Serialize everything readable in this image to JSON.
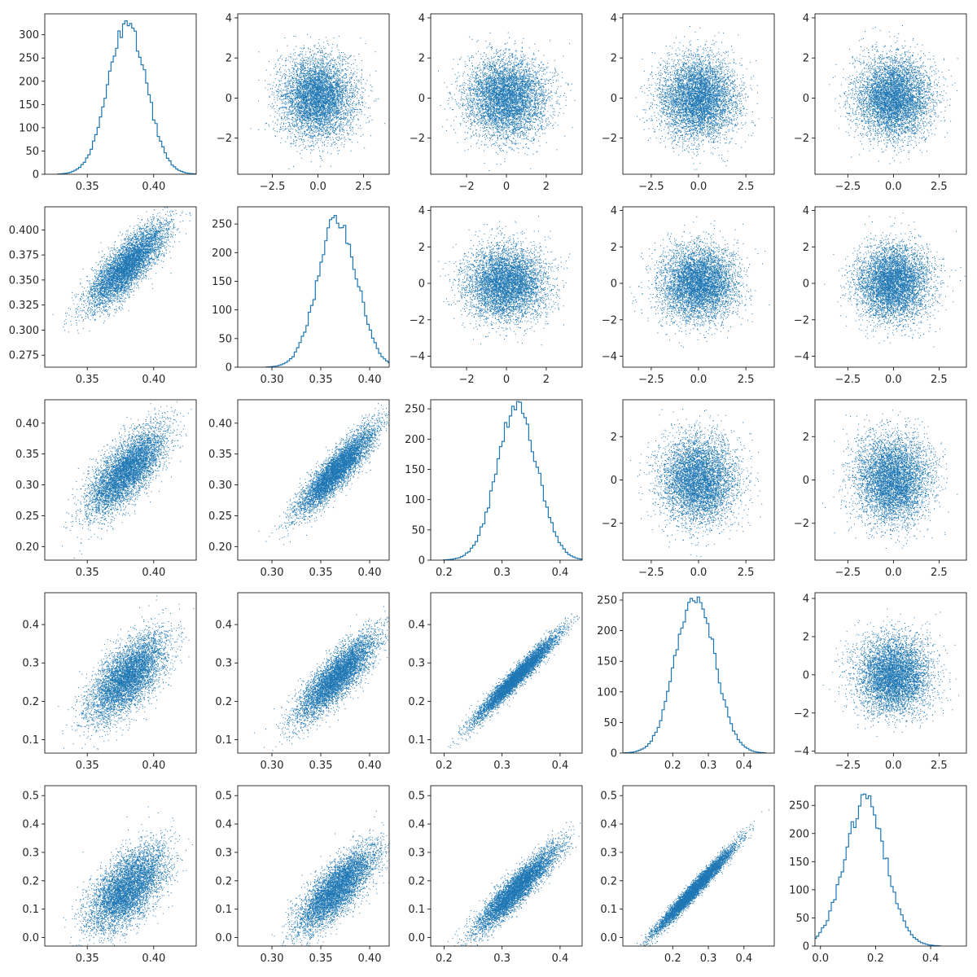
{
  "figure": {
    "background": "#ffffff",
    "accent": "#1f77b4"
  },
  "chart_data": [
    {
      "type": "histogram",
      "row": 0,
      "col": 0,
      "xlim": [
        0.318,
        0.432
      ],
      "ylim": [
        0,
        345
      ],
      "xticks": [
        0.35,
        0.4
      ],
      "xtick_labels": [
        "0.35",
        "0.40"
      ],
      "yticks": [
        0,
        50,
        100,
        150,
        200,
        250,
        300
      ],
      "ytick_labels": [
        "0",
        "50",
        "100",
        "150",
        "200",
        "250",
        "300"
      ],
      "dist": {
        "mean": 0.38,
        "sd": 0.0145,
        "peak": 330
      },
      "bins": 60
    },
    {
      "type": "scatter",
      "row": 0,
      "col": 1,
      "xlim": [
        -4.4,
        3.9
      ],
      "ylim": [
        -3.8,
        4.2
      ],
      "xticks": [
        -2.5,
        0.0,
        2.5
      ],
      "xtick_labels": [
        "−2.5",
        "0.0",
        "2.5"
      ],
      "yticks": [
        -2,
        0,
        2,
        4
      ],
      "ytick_labels": [
        "−2",
        "0",
        "2",
        "4"
      ],
      "points": {
        "n": 5500,
        "x": {
          "mean": 0,
          "sd": 1
        },
        "y": {
          "mean": 0,
          "sd": 1
        },
        "corr": 0
      }
    },
    {
      "type": "scatter",
      "row": 0,
      "col": 2,
      "xlim": [
        -3.8,
        3.8
      ],
      "ylim": [
        -3.8,
        4.2
      ],
      "xticks": [
        -2,
        0,
        2
      ],
      "xtick_labels": [
        "−2",
        "0",
        "2"
      ],
      "yticks": [
        -2,
        0,
        2,
        4
      ],
      "ytick_labels": [
        "−2",
        "0",
        "2",
        "4"
      ],
      "points": {
        "n": 5500,
        "x": {
          "mean": 0,
          "sd": 1
        },
        "y": {
          "mean": 0,
          "sd": 1
        },
        "corr": 0
      }
    },
    {
      "type": "scatter",
      "row": 0,
      "col": 3,
      "xlim": [
        -4.0,
        4.0
      ],
      "ylim": [
        -3.8,
        4.2
      ],
      "xticks": [
        -2.5,
        0.0,
        2.5
      ],
      "xtick_labels": [
        "−2.5",
        "0.0",
        "2.5"
      ],
      "yticks": [
        -2,
        0,
        2,
        4
      ],
      "ytick_labels": [
        "−2",
        "0",
        "2",
        "4"
      ],
      "points": {
        "n": 5500,
        "x": {
          "mean": 0,
          "sd": 1
        },
        "y": {
          "mean": 0,
          "sd": 1
        },
        "corr": 0
      }
    },
    {
      "type": "scatter",
      "row": 0,
      "col": 4,
      "xlim": [
        -4.3,
        4.0
      ],
      "ylim": [
        -3.8,
        4.2
      ],
      "xticks": [
        -2.5,
        0.0,
        2.5
      ],
      "xtick_labels": [
        "−2.5",
        "0.0",
        "2.5"
      ],
      "yticks": [
        -2,
        0,
        2,
        4
      ],
      "ytick_labels": [
        "−2",
        "0",
        "2",
        "4"
      ],
      "points": {
        "n": 5500,
        "x": {
          "mean": 0,
          "sd": 1
        },
        "y": {
          "mean": 0,
          "sd": 1
        },
        "corr": 0
      }
    },
    {
      "type": "scatter",
      "row": 1,
      "col": 0,
      "xlim": [
        0.318,
        0.432
      ],
      "ylim": [
        0.263,
        0.423
      ],
      "xticks": [
        0.35,
        0.4
      ],
      "xtick_labels": [
        "0.35",
        "0.40"
      ],
      "yticks": [
        0.275,
        0.3,
        0.325,
        0.35,
        0.375,
        0.4
      ],
      "ytick_labels": [
        "0.275",
        "0.300",
        "0.325",
        "0.350",
        "0.375",
        "0.400"
      ],
      "points": {
        "n": 5500,
        "x": {
          "mean": 0.38,
          "sd": 0.0145
        },
        "y": {
          "mean": 0.364,
          "sd": 0.021
        },
        "corr": 0.8
      }
    },
    {
      "type": "histogram",
      "row": 1,
      "col": 1,
      "xlim": [
        0.265,
        0.42
      ],
      "ylim": [
        0,
        280
      ],
      "xticks": [
        0.3,
        0.35,
        0.4
      ],
      "xtick_labels": [
        "0.30",
        "0.35",
        "0.40"
      ],
      "yticks": [
        0,
        50,
        100,
        150,
        200,
        250
      ],
      "ytick_labels": [
        "0",
        "50",
        "100",
        "150",
        "200",
        "250"
      ],
      "dist": {
        "mean": 0.366,
        "sd": 0.02,
        "skew": -0.5,
        "peak": 265
      },
      "bins": 60
    },
    {
      "type": "scatter",
      "row": 1,
      "col": 2,
      "xlim": [
        -3.8,
        3.8
      ],
      "ylim": [
        -4.6,
        4.2
      ],
      "xticks": [
        -2,
        0,
        2
      ],
      "xtick_labels": [
        "−2",
        "0",
        "2"
      ],
      "yticks": [
        -4,
        -2,
        0,
        2,
        4
      ],
      "ytick_labels": [
        "−4",
        "−2",
        "0",
        "2",
        "4"
      ],
      "points": {
        "n": 5500,
        "x": {
          "mean": 0,
          "sd": 1
        },
        "y": {
          "mean": 0,
          "sd": 1
        },
        "corr": 0
      }
    },
    {
      "type": "scatter",
      "row": 1,
      "col": 3,
      "xlim": [
        -4.0,
        4.0
      ],
      "ylim": [
        -4.6,
        4.2
      ],
      "xticks": [
        -2.5,
        0.0,
        2.5
      ],
      "xtick_labels": [
        "−2.5",
        "0.0",
        "2.5"
      ],
      "yticks": [
        -4,
        -2,
        0,
        2,
        4
      ],
      "ytick_labels": [
        "−4",
        "−2",
        "0",
        "2",
        "4"
      ],
      "points": {
        "n": 5500,
        "x": {
          "mean": 0,
          "sd": 1
        },
        "y": {
          "mean": 0,
          "sd": 1
        },
        "corr": 0
      }
    },
    {
      "type": "scatter",
      "row": 1,
      "col": 4,
      "xlim": [
        -4.3,
        4.0
      ],
      "ylim": [
        -4.6,
        4.2
      ],
      "xticks": [
        -2.5,
        0.0,
        2.5
      ],
      "xtick_labels": [
        "−2.5",
        "0.0",
        "2.5"
      ],
      "yticks": [
        -4,
        -2,
        0,
        2,
        4
      ],
      "ytick_labels": [
        "−4",
        "−2",
        "0",
        "2",
        "4"
      ],
      "points": {
        "n": 5500,
        "x": {
          "mean": 0,
          "sd": 1
        },
        "y": {
          "mean": 0,
          "sd": 1
        },
        "corr": 0
      }
    },
    {
      "type": "scatter",
      "row": 2,
      "col": 0,
      "xlim": [
        0.318,
        0.432
      ],
      "ylim": [
        0.178,
        0.438
      ],
      "xticks": [
        0.35,
        0.4
      ],
      "xtick_labels": [
        "0.35",
        "0.40"
      ],
      "yticks": [
        0.2,
        0.25,
        0.3,
        0.35,
        0.4
      ],
      "ytick_labels": [
        "0.20",
        "0.25",
        "0.30",
        "0.35",
        "0.40"
      ],
      "points": {
        "n": 5500,
        "x": {
          "mean": 0.38,
          "sd": 0.0145
        },
        "y": {
          "mean": 0.323,
          "sd": 0.035
        },
        "corr": 0.72
      }
    },
    {
      "type": "scatter",
      "row": 2,
      "col": 1,
      "xlim": [
        0.265,
        0.42
      ],
      "ylim": [
        0.178,
        0.438
      ],
      "xticks": [
        0.3,
        0.35,
        0.4
      ],
      "xtick_labels": [
        "0.30",
        "0.35",
        "0.40"
      ],
      "yticks": [
        0.2,
        0.25,
        0.3,
        0.35,
        0.4
      ],
      "ytick_labels": [
        "0.20",
        "0.25",
        "0.30",
        "0.35",
        "0.40"
      ],
      "points": {
        "n": 5500,
        "x": {
          "mean": 0.366,
          "sd": 0.02
        },
        "y": {
          "mean": 0.323,
          "sd": 0.035
        },
        "corr": 0.9
      }
    },
    {
      "type": "histogram",
      "row": 2,
      "col": 2,
      "xlim": [
        0.177,
        0.438
      ],
      "ylim": [
        0,
        265
      ],
      "xticks": [
        0.2,
        0.3,
        0.4
      ],
      "xtick_labels": [
        "0.2",
        "0.3",
        "0.4"
      ],
      "yticks": [
        0,
        50,
        100,
        150,
        200,
        250
      ],
      "ytick_labels": [
        "0",
        "50",
        "100",
        "150",
        "200",
        "250"
      ],
      "dist": {
        "mean": 0.325,
        "sd": 0.035,
        "skew": -0.3,
        "peak": 262
      },
      "bins": 60
    },
    {
      "type": "scatter",
      "row": 2,
      "col": 3,
      "xlim": [
        -4.0,
        4.0
      ],
      "ylim": [
        -3.7,
        3.7
      ],
      "xticks": [
        -2.5,
        0.0,
        2.5
      ],
      "xtick_labels": [
        "−2.5",
        "0.0",
        "2.5"
      ],
      "yticks": [
        -2,
        0,
        2
      ],
      "ytick_labels": [
        "−2",
        "0",
        "2"
      ],
      "points": {
        "n": 5500,
        "x": {
          "mean": 0,
          "sd": 1
        },
        "y": {
          "mean": 0,
          "sd": 1
        },
        "corr": 0
      }
    },
    {
      "type": "scatter",
      "row": 2,
      "col": 4,
      "xlim": [
        -4.3,
        4.0
      ],
      "ylim": [
        -3.7,
        3.7
      ],
      "xticks": [
        -2.5,
        0.0,
        2.5
      ],
      "xtick_labels": [
        "−2.5",
        "0.0",
        "2.5"
      ],
      "yticks": [
        -2,
        0,
        2
      ],
      "ytick_labels": [
        "−2",
        "0",
        "2"
      ],
      "points": {
        "n": 5500,
        "x": {
          "mean": 0,
          "sd": 1
        },
        "y": {
          "mean": 0,
          "sd": 1
        },
        "corr": 0
      }
    },
    {
      "type": "scatter",
      "row": 3,
      "col": 0,
      "xlim": [
        0.318,
        0.432
      ],
      "ylim": [
        0.065,
        0.483
      ],
      "xticks": [
        0.35,
        0.4
      ],
      "xtick_labels": [
        "0.35",
        "0.40"
      ],
      "yticks": [
        0.1,
        0.2,
        0.3,
        0.4
      ],
      "ytick_labels": [
        "0.1",
        "0.2",
        "0.3",
        "0.4"
      ],
      "points": {
        "n": 5500,
        "x": {
          "mean": 0.38,
          "sd": 0.0145
        },
        "y": {
          "mean": 0.262,
          "sd": 0.055
        },
        "corr": 0.66
      }
    },
    {
      "type": "scatter",
      "row": 3,
      "col": 1,
      "xlim": [
        0.265,
        0.42
      ],
      "ylim": [
        0.065,
        0.483
      ],
      "xticks": [
        0.3,
        0.35,
        0.4
      ],
      "xtick_labels": [
        "0.30",
        "0.35",
        "0.40"
      ],
      "yticks": [
        0.1,
        0.2,
        0.3,
        0.4
      ],
      "ytick_labels": [
        "0.1",
        "0.2",
        "0.3",
        "0.4"
      ],
      "points": {
        "n": 5500,
        "x": {
          "mean": 0.366,
          "sd": 0.02
        },
        "y": {
          "mean": 0.262,
          "sd": 0.055
        },
        "corr": 0.84
      }
    },
    {
      "type": "scatter",
      "row": 3,
      "col": 2,
      "xlim": [
        0.177,
        0.438
      ],
      "ylim": [
        0.065,
        0.483
      ],
      "xticks": [
        0.2,
        0.3,
        0.4
      ],
      "xtick_labels": [
        "0.2",
        "0.3",
        "0.4"
      ],
      "yticks": [
        0.1,
        0.2,
        0.3,
        0.4
      ],
      "ytick_labels": [
        "0.1",
        "0.2",
        "0.3",
        "0.4"
      ],
      "points": {
        "n": 5500,
        "x": {
          "mean": 0.325,
          "sd": 0.035
        },
        "y": {
          "mean": 0.262,
          "sd": 0.055
        },
        "corr": 0.97
      }
    },
    {
      "type": "histogram",
      "row": 3,
      "col": 3,
      "xlim": [
        0.06,
        0.485
      ],
      "ylim": [
        0,
        262
      ],
      "xticks": [
        0.2,
        0.3,
        0.4
      ],
      "xtick_labels": [
        "0.2",
        "0.3",
        "0.4"
      ],
      "yticks": [
        0,
        50,
        100,
        150,
        200,
        250
      ],
      "ytick_labels": [
        "0",
        "50",
        "100",
        "150",
        "200",
        "250"
      ],
      "dist": {
        "mean": 0.262,
        "sd": 0.055,
        "skew": -0.2,
        "peak": 255
      },
      "bins": 60
    },
    {
      "type": "scatter",
      "row": 3,
      "col": 4,
      "xlim": [
        -4.3,
        4.0
      ],
      "ylim": [
        -4.1,
        4.3
      ],
      "xticks": [
        -2.5,
        0.0,
        2.5
      ],
      "xtick_labels": [
        "−2.5",
        "0.0",
        "2.5"
      ],
      "yticks": [
        -4,
        -2,
        0,
        2,
        4
      ],
      "ytick_labels": [
        "−4",
        "−2",
        "0",
        "2",
        "4"
      ],
      "points": {
        "n": 5500,
        "x": {
          "mean": 0,
          "sd": 1
        },
        "y": {
          "mean": 0,
          "sd": 1
        },
        "corr": 0
      }
    },
    {
      "type": "scatter",
      "row": 4,
      "col": 0,
      "xlim": [
        0.318,
        0.432
      ],
      "ylim": [
        -0.03,
        0.535
      ],
      "xticks": [
        0.35,
        0.4
      ],
      "xtick_labels": [
        "0.35",
        "0.40"
      ],
      "yticks": [
        0.0,
        0.1,
        0.2,
        0.3,
        0.4,
        0.5
      ],
      "ytick_labels": [
        "0.0",
        "0.1",
        "0.2",
        "0.3",
        "0.4",
        "0.5"
      ],
      "points": {
        "n": 5500,
        "x": {
          "mean": 0.38,
          "sd": 0.0145
        },
        "y": {
          "mean": 0.17,
          "sd": 0.075
        },
        "corr": 0.6
      }
    },
    {
      "type": "scatter",
      "row": 4,
      "col": 1,
      "xlim": [
        0.265,
        0.42
      ],
      "ylim": [
        -0.03,
        0.535
      ],
      "xticks": [
        0.3,
        0.35,
        0.4
      ],
      "xtick_labels": [
        "0.30",
        "0.35",
        "0.40"
      ],
      "yticks": [
        0.0,
        0.1,
        0.2,
        0.3,
        0.4,
        0.5
      ],
      "ytick_labels": [
        "0.0",
        "0.1",
        "0.2",
        "0.3",
        "0.4",
        "0.5"
      ],
      "points": {
        "n": 5500,
        "x": {
          "mean": 0.366,
          "sd": 0.02
        },
        "y": {
          "mean": 0.17,
          "sd": 0.075
        },
        "corr": 0.78
      }
    },
    {
      "type": "scatter",
      "row": 4,
      "col": 2,
      "xlim": [
        0.177,
        0.438
      ],
      "ylim": [
        -0.03,
        0.535
      ],
      "xticks": [
        0.2,
        0.3,
        0.4
      ],
      "xtick_labels": [
        "0.2",
        "0.3",
        "0.4"
      ],
      "yticks": [
        0.0,
        0.1,
        0.2,
        0.3,
        0.4,
        0.5
      ],
      "ytick_labels": [
        "0.0",
        "0.1",
        "0.2",
        "0.3",
        "0.4",
        "0.5"
      ],
      "points": {
        "n": 5500,
        "x": {
          "mean": 0.325,
          "sd": 0.035
        },
        "y": {
          "mean": 0.17,
          "sd": 0.075
        },
        "corr": 0.92
      }
    },
    {
      "type": "scatter",
      "row": 4,
      "col": 3,
      "xlim": [
        0.06,
        0.485
      ],
      "ylim": [
        -0.03,
        0.535
      ],
      "xticks": [
        0.2,
        0.3,
        0.4
      ],
      "xtick_labels": [
        "0.2",
        "0.3",
        "0.4"
      ],
      "yticks": [
        0.0,
        0.1,
        0.2,
        0.3,
        0.4,
        0.5
      ],
      "ytick_labels": [
        "0.0",
        "0.1",
        "0.2",
        "0.3",
        "0.4",
        "0.5"
      ],
      "points": {
        "n": 5500,
        "x": {
          "mean": 0.262,
          "sd": 0.055
        },
        "y": {
          "mean": 0.17,
          "sd": 0.075
        },
        "corr": 0.98
      }
    },
    {
      "type": "histogram",
      "row": 4,
      "col": 4,
      "xlim": [
        -0.02,
        0.53
      ],
      "ylim": [
        0,
        285
      ],
      "xticks": [
        0.0,
        0.2,
        0.4
      ],
      "xtick_labels": [
        "0.0",
        "0.2",
        "0.4"
      ],
      "yticks": [
        0,
        50,
        100,
        150,
        200,
        250
      ],
      "ytick_labels": [
        "0",
        "50",
        "100",
        "150",
        "200",
        "250"
      ],
      "dist": {
        "mean": 0.165,
        "sd": 0.075,
        "skew": 0.3,
        "peak": 270
      },
      "bins": 60
    }
  ]
}
